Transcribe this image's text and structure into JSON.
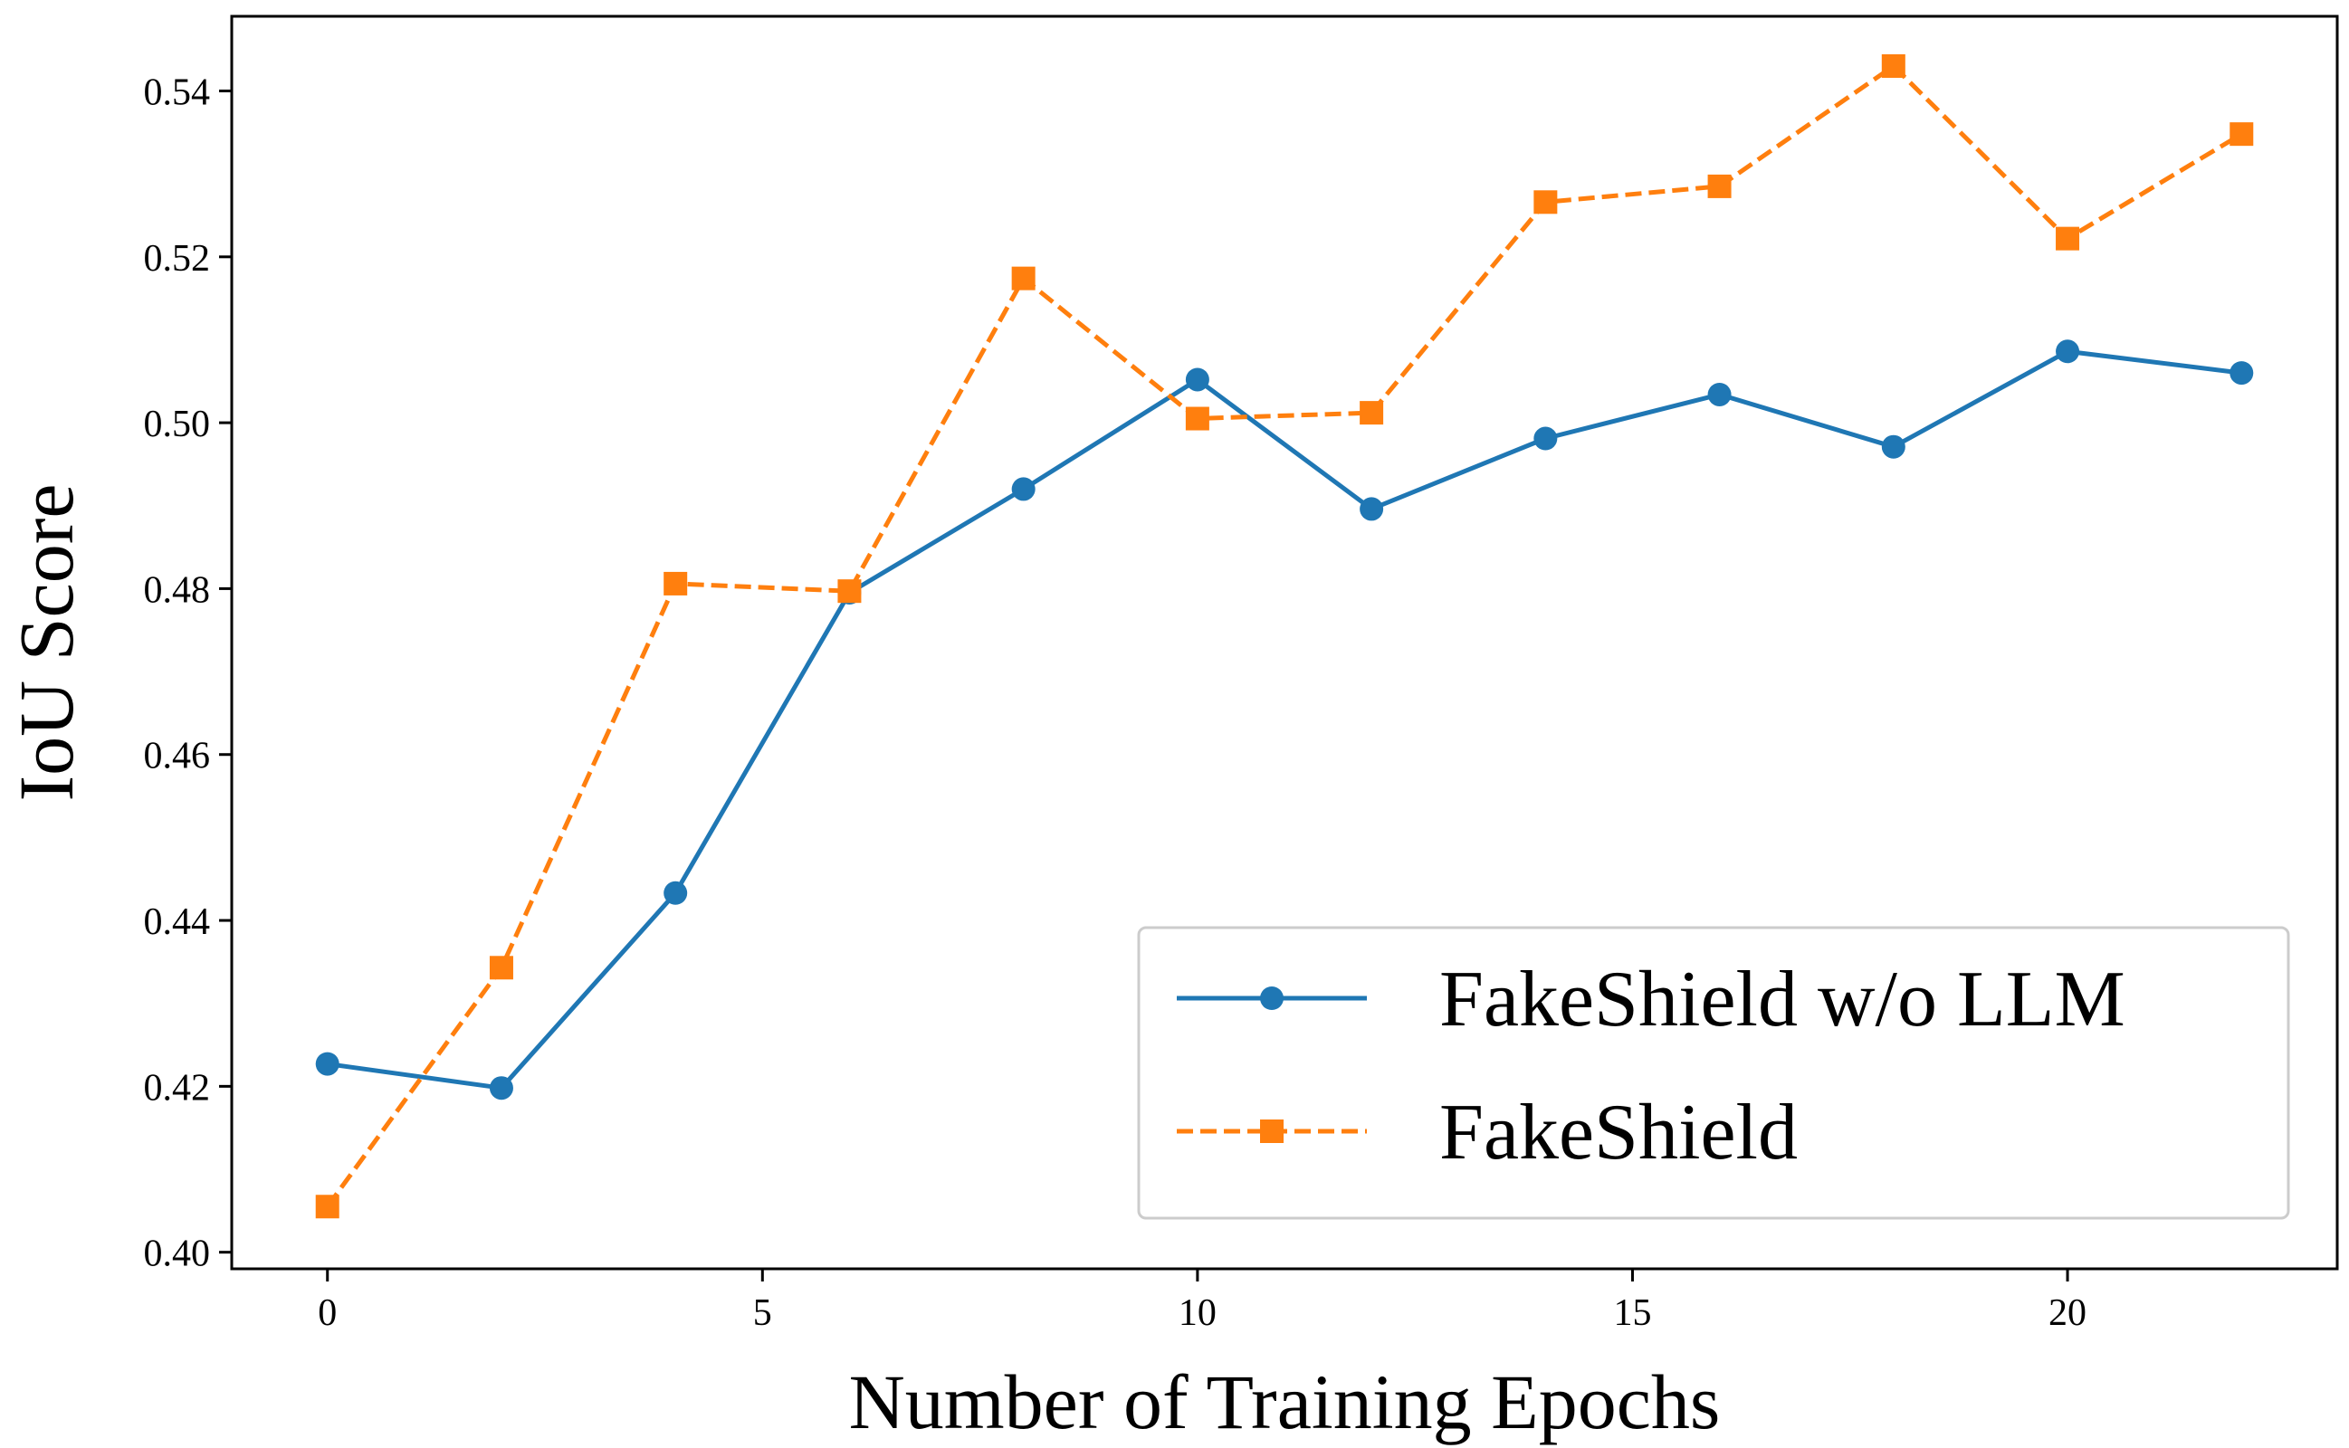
{
  "chart_data": {
    "type": "line",
    "title": "",
    "xlabel": "Number of Training Epochs",
    "ylabel": "IoU Score",
    "xlim": [
      -1.1,
      23.1
    ],
    "ylim": [
      0.398,
      0.549
    ],
    "xticks": [
      0,
      5,
      10,
      15,
      20
    ],
    "yticks": [
      0.4,
      0.42,
      0.44,
      0.46,
      0.48,
      0.5,
      0.52,
      0.54
    ],
    "xtick_labels": [
      "0",
      "5",
      "10",
      "15",
      "20"
    ],
    "ytick_labels": [
      "0.40",
      "0.42",
      "0.44",
      "0.46",
      "0.48",
      "0.50",
      "0.52",
      "0.54"
    ],
    "grid": false,
    "legend_position": "bottom-right",
    "x": [
      0,
      2,
      4,
      6,
      8,
      10,
      12,
      14,
      16,
      18,
      20,
      22
    ],
    "series": [
      {
        "name": "FakeShield w/o LLM",
        "color": "#1f77b4",
        "line_style": "solid",
        "marker": "circle",
        "values": [
          0.4227,
          0.4198,
          0.4433,
          0.4795,
          0.492,
          0.5052,
          0.4896,
          0.4981,
          0.5034,
          0.4971,
          0.5086,
          0.506
        ]
      },
      {
        "name": "FakeShield",
        "color": "#ff7f0e",
        "line_style": "dashed",
        "marker": "square",
        "values": [
          0.4055,
          0.4343,
          0.4806,
          0.4797,
          0.5174,
          0.5005,
          0.5012,
          0.5266,
          0.5285,
          0.543,
          0.5222,
          0.5348
        ]
      }
    ]
  }
}
